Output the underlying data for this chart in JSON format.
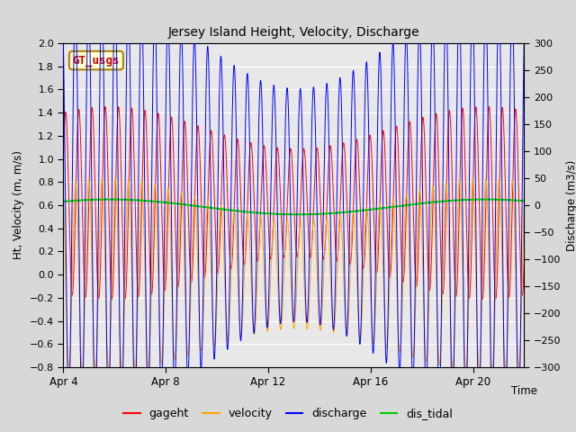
{
  "title": "Jersey Island Height, Velocity, Discharge",
  "xlabel": "Time",
  "ylabel_left": "Ht, Velocity (m, m/s)",
  "ylabel_right": "Discharge (m3/s)",
  "ylim_left": [
    -0.8,
    2.0
  ],
  "ylim_right": [
    -300,
    300
  ],
  "yticks_left": [
    -0.8,
    -0.6,
    -0.4,
    -0.2,
    0.0,
    0.2,
    0.4,
    0.6,
    0.8,
    1.0,
    1.2,
    1.4,
    1.6,
    1.8,
    2.0
  ],
  "yticks_right": [
    -300,
    -250,
    -200,
    -150,
    -100,
    -50,
    0,
    50,
    100,
    150,
    200,
    250,
    300
  ],
  "xtick_labels": [
    "Apr 4",
    "Apr 8",
    "Apr 12",
    "Apr 16",
    "Apr 20"
  ],
  "xlim": [
    0,
    18
  ],
  "xtick_positions": [
    0,
    4,
    8,
    12,
    16
  ],
  "legend_labels": [
    "gageht",
    "velocity",
    "discharge",
    "dis_tidal"
  ],
  "legend_colors": [
    "#ff0000",
    "#ffa500",
    "#0000ff",
    "#00cc00"
  ],
  "box_label": "GT_usgs",
  "box_color": "#cc0000",
  "box_bg": "#ffffcc",
  "box_border": "#aa8800",
  "outer_bg": "#d8d8d8",
  "plot_bg": "#e8e8e8",
  "grid_color": "#ffffff",
  "tidal_period_days": 0.517,
  "spring_neap_period": 14.7,
  "gageht_baseline": 0.62,
  "gageht_amplitude": 0.65,
  "gageht_envelope_mod": 0.28,
  "velocity_amplitude": 0.65,
  "discharge_amplitude": 300,
  "dis_tidal_baseline": 0.585,
  "dis_tidal_amplitude": 0.065,
  "n_points": 8000,
  "duration": 18.0
}
